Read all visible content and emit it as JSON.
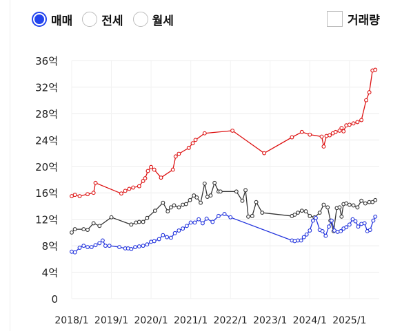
{
  "options": {
    "deal_types": [
      {
        "label": "매매",
        "selected": true
      },
      {
        "label": "전세",
        "selected": false
      },
      {
        "label": "월세",
        "selected": false
      }
    ],
    "volume_label": "거래량",
    "volume_checked": false
  },
  "colors": {
    "selected": "#2244ee",
    "series_top": "#dd1111",
    "series_mid": "#333333",
    "series_low": "#2233dd"
  },
  "chart_data": {
    "type": "line",
    "title": "",
    "xlabel": "",
    "ylabel": "",
    "y_unit": "억",
    "ylim": [
      0,
      36
    ],
    "y_ticks": [
      0,
      4,
      8,
      12,
      16,
      20,
      24,
      28,
      32,
      36
    ],
    "y_tick_labels": [
      "0",
      "4억",
      "8억",
      "12억",
      "16억",
      "20억",
      "24억",
      "28억",
      "32억",
      "36억"
    ],
    "x_tick_labels": [
      "2018/1",
      "2019/1",
      "2020/1",
      "2021/1",
      "2022/1",
      "2023/1",
      "2024/1",
      "2025/1"
    ],
    "xlim": [
      2018.0,
      2025.75
    ],
    "grid": true,
    "legend": false,
    "series": [
      {
        "color": "#dd1111",
        "x": [
          2018.0,
          2018.08,
          2018.2,
          2018.4,
          2018.55,
          2018.6,
          2019.25,
          2019.35,
          2019.45,
          2019.55,
          2019.7,
          2019.8,
          2019.85,
          2019.92,
          2020.0,
          2020.08,
          2020.25,
          2020.55,
          2020.62,
          2020.7,
          2020.95,
          2021.05,
          2021.12,
          2021.35,
          2022.05,
          2022.85,
          2023.55,
          2023.8,
          2024.0,
          2024.3,
          2024.35,
          2024.42,
          2024.5,
          2024.58,
          2024.65,
          2024.75,
          2024.8,
          2024.85,
          2024.92,
          2025.0,
          2025.1,
          2025.2,
          2025.3,
          2025.42,
          2025.5,
          2025.58,
          2025.65
        ],
        "y": [
          15.5,
          15.7,
          15.5,
          15.8,
          16.0,
          17.5,
          15.9,
          16.3,
          16.6,
          16.8,
          17.0,
          17.8,
          18.2,
          19.3,
          19.9,
          19.5,
          18.3,
          19.5,
          21.5,
          21.9,
          22.8,
          23.5,
          24.0,
          25.0,
          25.4,
          22.0,
          24.4,
          25.2,
          24.8,
          24.5,
          23.0,
          24.6,
          24.7,
          25.0,
          25.2,
          25.4,
          25.8,
          25.3,
          26.2,
          26.3,
          26.5,
          26.7,
          27.0,
          30.0,
          31.2,
          34.5,
          34.6
        ]
      },
      {
        "color": "#333333",
        "x": [
          2018.0,
          2018.08,
          2018.3,
          2018.4,
          2018.55,
          2018.7,
          2019.0,
          2019.5,
          2019.62,
          2019.7,
          2019.8,
          2019.9,
          2020.1,
          2020.3,
          2020.42,
          2020.5,
          2020.58,
          2020.7,
          2020.8,
          2020.88,
          2020.98,
          2021.08,
          2021.15,
          2021.25,
          2021.35,
          2021.42,
          2021.5,
          2021.6,
          2021.7,
          2021.75,
          2022.15,
          2022.3,
          2022.38,
          2022.45,
          2022.55,
          2022.65,
          2022.8,
          2023.55,
          2023.62,
          2023.7,
          2023.8,
          2023.9,
          2024.0,
          2024.12,
          2024.25,
          2024.35,
          2024.45,
          2024.52,
          2024.6,
          2024.68,
          2024.75,
          2024.8,
          2024.85,
          2024.92,
          2025.0,
          2025.1,
          2025.2,
          2025.3,
          2025.4,
          2025.5,
          2025.58,
          2025.65
        ],
        "y": [
          10.0,
          10.5,
          10.5,
          10.4,
          11.4,
          11.0,
          12.3,
          11.2,
          11.5,
          11.6,
          11.6,
          12.2,
          13.3,
          14.5,
          13.2,
          13.8,
          14.1,
          13.8,
          14.2,
          14.3,
          14.9,
          15.6,
          15.3,
          14.5,
          17.4,
          15.4,
          15.6,
          17.5,
          16.2,
          16.2,
          16.2,
          14.8,
          16.4,
          12.4,
          12.5,
          14.6,
          13.0,
          12.5,
          12.7,
          13.0,
          13.3,
          13.2,
          12.5,
          12.3,
          13.0,
          14.2,
          13.8,
          11.8,
          10.2,
          13.7,
          13.8,
          12.4,
          14.3,
          14.4,
          14.2,
          14.1,
          13.8,
          14.8,
          14.4,
          14.6,
          14.6,
          14.9
        ]
      },
      {
        "color": "#2233dd",
        "x": [
          2018.0,
          2018.08,
          2018.2,
          2018.3,
          2018.4,
          2018.5,
          2018.6,
          2018.7,
          2018.78,
          2018.85,
          2018.95,
          2019.2,
          2019.35,
          2019.42,
          2019.5,
          2019.6,
          2019.7,
          2019.8,
          2019.9,
          2020.0,
          2020.08,
          2020.2,
          2020.3,
          2020.4,
          2020.5,
          2020.6,
          2020.7,
          2020.8,
          2020.9,
          2021.0,
          2021.1,
          2021.2,
          2021.3,
          2021.4,
          2021.55,
          2021.7,
          2021.85,
          2022.0,
          2023.55,
          2023.62,
          2023.7,
          2023.78,
          2023.85,
          2023.92,
          2024.0,
          2024.08,
          2024.15,
          2024.25,
          2024.32,
          2024.4,
          2024.48,
          2024.55,
          2024.62,
          2024.7,
          2024.78,
          2024.85,
          2024.92,
          2025.0,
          2025.08,
          2025.15,
          2025.22,
          2025.3,
          2025.38,
          2025.45,
          2025.52,
          2025.6,
          2025.65
        ],
        "y": [
          7.1,
          7.0,
          7.7,
          8.0,
          7.8,
          7.8,
          8.1,
          8.4,
          8.8,
          8.0,
          8.0,
          7.8,
          7.6,
          7.6,
          7.5,
          7.8,
          7.9,
          8.0,
          8.2,
          8.6,
          8.7,
          9.0,
          9.6,
          9.3,
          9.2,
          9.9,
          10.3,
          10.6,
          11.0,
          11.5,
          11.5,
          12.0,
          11.4,
          12.1,
          11.6,
          12.5,
          12.8,
          12.3,
          8.8,
          8.7,
          8.8,
          8.8,
          9.3,
          9.7,
          10.3,
          11.8,
          12.2,
          10.4,
          10.2,
          9.5,
          10.9,
          11.8,
          10.3,
          10.1,
          10.2,
          10.6,
          10.8,
          11.2,
          12.0,
          11.7,
          10.9,
          11.3,
          11.4,
          10.2,
          10.4,
          11.8,
          12.4
        ]
      }
    ]
  }
}
